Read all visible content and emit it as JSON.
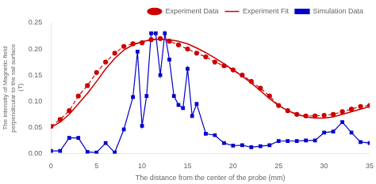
{
  "chart_data": {
    "type": "line",
    "xlabel": "The distance from the center of the probe (mm)",
    "ylabel": "The intensity of Magnetic field\nperpendicular to the rail surface\n (T)",
    "xlim": [
      0,
      35
    ],
    "ylim": [
      0,
      0.25
    ],
    "xticks": [
      0,
      5,
      10,
      15,
      20,
      25,
      30,
      35
    ],
    "yticks": [
      {
        "value": 0,
        "label": "0.00"
      },
      0.05,
      {
        "value": 0.1,
        "label": "0.10"
      },
      0.15,
      {
        "value": 0.2,
        "label": "0.20"
      },
      0.25
    ],
    "grid": false,
    "legend": "upper right",
    "series": [
      {
        "name": "Experiment Data",
        "color": "#cc0000",
        "line_style": "dashed",
        "marker": "circle",
        "x": [
          0,
          1,
          2,
          3,
          4,
          5,
          6,
          7,
          8,
          9,
          10,
          11,
          12,
          13,
          14,
          15,
          16,
          17,
          18,
          19,
          20,
          21,
          22,
          23,
          24,
          25,
          26,
          27,
          28,
          29,
          30,
          31,
          32,
          33,
          34,
          35
        ],
        "values": [
          0.052,
          0.065,
          0.082,
          0.11,
          0.13,
          0.155,
          0.175,
          0.192,
          0.205,
          0.21,
          0.212,
          0.218,
          0.22,
          0.215,
          0.208,
          0.2,
          0.192,
          0.185,
          0.175,
          0.168,
          0.16,
          0.15,
          0.138,
          0.125,
          0.11,
          0.092,
          0.082,
          0.075,
          0.072,
          0.072,
          0.073,
          0.075,
          0.08,
          0.085,
          0.09,
          0.092
        ]
      },
      {
        "name": "Experiment Fit",
        "color": "#cc0000",
        "line_style": "solid",
        "marker": "none",
        "x": [
          0,
          1,
          2,
          3,
          4,
          5,
          6,
          7,
          8,
          9,
          10,
          11,
          12,
          13,
          14,
          15,
          16,
          17,
          18,
          19,
          20,
          21,
          22,
          23,
          24,
          25,
          26,
          27,
          28,
          29,
          30,
          31,
          32,
          33,
          34,
          35
        ],
        "values": [
          0.05,
          0.06,
          0.075,
          0.095,
          0.115,
          0.138,
          0.162,
          0.182,
          0.198,
          0.208,
          0.214,
          0.218,
          0.219,
          0.218,
          0.215,
          0.21,
          0.202,
          0.193,
          0.183,
          0.172,
          0.16,
          0.148,
          0.135,
          0.12,
          0.105,
          0.092,
          0.082,
          0.075,
          0.07,
          0.068,
          0.068,
          0.07,
          0.075,
          0.08,
          0.085,
          0.09
        ]
      },
      {
        "name": "Simulation Data",
        "color": "#0000cc",
        "line_style": "solid",
        "marker": "square",
        "x": [
          0,
          1,
          2,
          3,
          4,
          5,
          6,
          7,
          8,
          9,
          9.5,
          10,
          10.5,
          11,
          11.5,
          12,
          12.5,
          13,
          13.5,
          14,
          14.5,
          15,
          15.5,
          16,
          17,
          18,
          19,
          20,
          21,
          22,
          23,
          24,
          25,
          26,
          27,
          28,
          29,
          30,
          31,
          32,
          33,
          34,
          35
        ],
        "values": [
          0.005,
          0.005,
          0.03,
          0.03,
          0.003,
          0.002,
          0.02,
          0.002,
          0.046,
          0.108,
          0.195,
          0.053,
          0.11,
          0.23,
          0.23,
          0.15,
          0.23,
          0.18,
          0.11,
          0.093,
          0.087,
          0.162,
          0.072,
          0.095,
          0.038,
          0.035,
          0.02,
          0.015,
          0.016,
          0.012,
          0.014,
          0.016,
          0.024,
          0.024,
          0.024,
          0.025,
          0.025,
          0.04,
          0.042,
          0.06,
          0.04,
          0.022,
          0.02
        ]
      }
    ]
  }
}
